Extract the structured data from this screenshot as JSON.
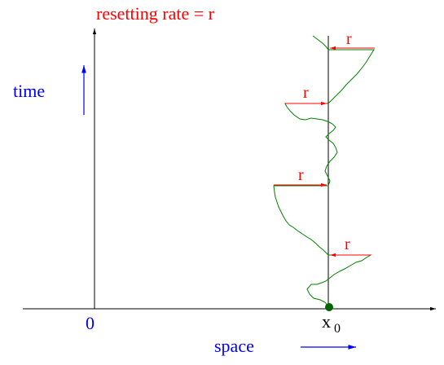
{
  "title": "resetting rate = r",
  "axes": {
    "y_label": "time",
    "x_label": "space",
    "origin_label": "0",
    "position_label": "x",
    "position_subscript": "0"
  },
  "resets": [
    {
      "label": "r",
      "direction": "from-right"
    },
    {
      "label": "r",
      "direction": "from-left"
    },
    {
      "label": "r",
      "direction": "from-left"
    },
    {
      "label": "r",
      "direction": "from-right"
    }
  ],
  "colors": {
    "title": "#ff0000",
    "reset_arrows": "#ff0000",
    "labels_blue": "#0000ff",
    "trajectory": "#008000",
    "axes": "#000000",
    "start_point": "#006400"
  }
}
